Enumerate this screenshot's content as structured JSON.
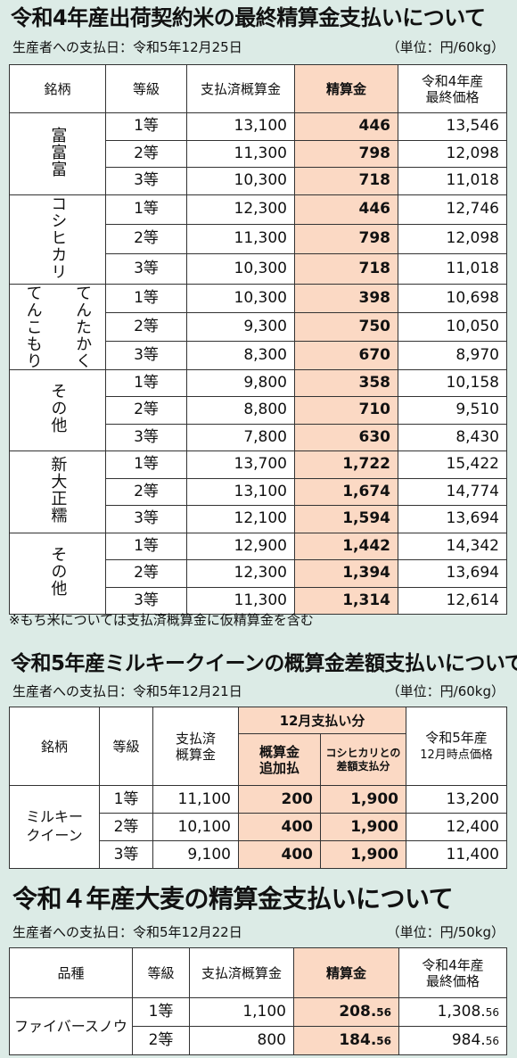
{
  "sec1": {
    "title": "令和4年産出荷契約米の最終精算金支払いについて",
    "pay_date": "生産者への支払日：令和5年12月25日",
    "unit": "（単位：円/60kg）",
    "headers": [
      "銘柄",
      "等級",
      "支払済概算金",
      "精算金",
      "令和4年産",
      "最終価格"
    ],
    "groups": [
      {
        "name": "富富富",
        "rows": [
          [
            "1等",
            "13,100",
            "446",
            "13,546"
          ],
          [
            "2等",
            "11,300",
            "798",
            "12,098"
          ],
          [
            "3等",
            "10,300",
            "718",
            "11,018"
          ]
        ]
      },
      {
        "name": "コシヒカリ",
        "rows": [
          [
            "1等",
            "12,300",
            "446",
            "12,746"
          ],
          [
            "2等",
            "11,300",
            "798",
            "12,098"
          ],
          [
            "3等",
            "10,300",
            "718",
            "11,018"
          ]
        ]
      },
      {
        "name_lines": [
          "てんたかく",
          "てんこもり"
        ],
        "rows": [
          [
            "1等",
            "10,300",
            "398",
            "10,698"
          ],
          [
            "2等",
            "9,300",
            "750",
            "10,050"
          ],
          [
            "3等",
            "8,300",
            "670",
            "8,970"
          ]
        ]
      },
      {
        "name": "その他",
        "rows": [
          [
            "1等",
            "9,800",
            "358",
            "10,158"
          ],
          [
            "2等",
            "8,800",
            "710",
            "9,510"
          ],
          [
            "3等",
            "7,800",
            "630",
            "8,430"
          ]
        ]
      },
      {
        "name": "新大正糯",
        "rows": [
          [
            "1等",
            "13,700",
            "1,722",
            "15,422"
          ],
          [
            "2等",
            "13,100",
            "1,674",
            "14,774"
          ],
          [
            "3等",
            "12,100",
            "1,594",
            "13,694"
          ]
        ]
      },
      {
        "name": "その他",
        "rows": [
          [
            "1等",
            "12,900",
            "1,442",
            "14,342"
          ],
          [
            "2等",
            "12,300",
            "1,394",
            "13,694"
          ],
          [
            "3等",
            "11,300",
            "1,314",
            "12,614"
          ]
        ]
      }
    ],
    "note": "※もち米については支払済概算金に仮精算金を含む"
  },
  "sec2": {
    "title": "令和5年産ミルキークイーンの概算金差額支払いについて",
    "pay_date": "生産者への支払日：令和5年12月21日",
    "unit": "（単位：円/60kg）",
    "h_brand": "銘柄",
    "h_grade": "等級",
    "h_paid_1": "支払済",
    "h_paid_2": "概算金",
    "h_dec": "12月支払い分",
    "h_add_1": "概算金",
    "h_add_2": "追加払",
    "h_diff_1": "コシヒカリとの",
    "h_diff_2": "差額支払分",
    "h_price_1": "令和5年産",
    "h_price_2": "12月時点価格",
    "brand_1": "ミルキー",
    "brand_2": "クイーン",
    "rows": [
      [
        "1等",
        "11,100",
        "200",
        "1,900",
        "13,200"
      ],
      [
        "2等",
        "10,100",
        "400",
        "1,900",
        "12,400"
      ],
      [
        "3等",
        "9,100",
        "400",
        "1,900",
        "11,400"
      ]
    ]
  },
  "sec3": {
    "title": "令和４年産大麦の精算金支払いについて",
    "pay_date": "生産者への支払日：令和5年12月22日",
    "unit": "（単位：円/50kg）",
    "h_variety": "品種",
    "h_grade": "等級",
    "h_paid": "支払済概算金",
    "h_settle": "精算金",
    "h_price_1": "令和4年産",
    "h_price_2": "最終価格",
    "variety": "ファイバースノウ",
    "rows": [
      {
        "grade": "1等",
        "paid": "1,100",
        "settle_int": "208.",
        "settle_dec": "56",
        "final_int": "1,308.",
        "final_dec": "56"
      },
      {
        "grade": "2等",
        "paid": "800",
        "settle_int": "184.",
        "settle_dec": "56",
        "final_int": "984.",
        "final_dec": "56"
      }
    ]
  }
}
